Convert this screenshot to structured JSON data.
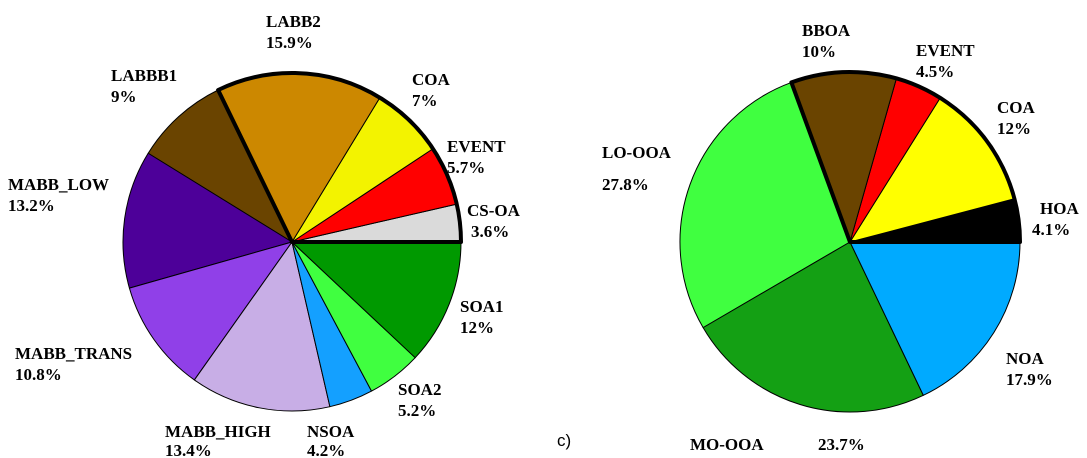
{
  "panel_label": "c)",
  "chart_data": [
    {
      "type": "pie",
      "title": "",
      "slices": [
        {
          "name": "CS-OA",
          "value_label": "3.6%",
          "value": 3.6,
          "color": "#dadada"
        },
        {
          "name": "EVENT",
          "value_label": "5.7%",
          "value": 5.7,
          "color": "#ff0000"
        },
        {
          "name": "COA",
          "value_label": "7%",
          "value": 7.0,
          "color": "#f3f300"
        },
        {
          "name": "LABB2",
          "value_label": "15.9%",
          "value": 15.9,
          "color": "#cc8800"
        },
        {
          "name": "LABBB1",
          "value_label": "9%",
          "value": 9.0,
          "color": "#6a4400"
        },
        {
          "name": "MABB_LOW",
          "value_label": "13.2%",
          "value": 13.2,
          "color": "#4d0099"
        },
        {
          "name": "MABB_TRANS",
          "value_label": "10.8%",
          "value": 10.8,
          "color": "#9040e8"
        },
        {
          "name": "MABB_HIGH",
          "value_label": "13.4%",
          "value": 13.4,
          "color": "#c8aee6"
        },
        {
          "name": "NSOA",
          "value_label": "4.2%",
          "value": 4.2,
          "color": "#14a0ff"
        },
        {
          "name": "SOA2",
          "value_label": "5.2%",
          "value": 5.2,
          "color": "#40ff40"
        },
        {
          "name": "SOA1",
          "value_label": "12%",
          "value": 12.0,
          "color": "#009900"
        }
      ],
      "highlighted_slices": [
        "CS-OA",
        "EVENT",
        "COA",
        "LABB2"
      ]
    },
    {
      "type": "pie",
      "title": "",
      "slices": [
        {
          "name": "HOA",
          "value_label": "4.1%",
          "value": 4.1,
          "color": "#000000"
        },
        {
          "name": "COA",
          "value_label": "12%",
          "value": 12.0,
          "color": "#ffff00"
        },
        {
          "name": "EVENT",
          "value_label": "4.5%",
          "value": 4.5,
          "color": "#ff0000"
        },
        {
          "name": "BBOA",
          "value_label": "10%",
          "value": 10.0,
          "color": "#6a4400"
        },
        {
          "name": "LO-OOA",
          "value_label": "27.8%",
          "value": 27.8,
          "color": "#40ff40"
        },
        {
          "name": "MO-OOA",
          "value_label": "23.7%",
          "value": 23.7,
          "color": "#14a014"
        },
        {
          "name": "NOA",
          "value_label": "17.9%",
          "value": 17.9,
          "color": "#00aaff"
        }
      ],
      "highlighted_slices": [
        "HOA",
        "COA",
        "EVENT",
        "BBOA"
      ]
    }
  ]
}
